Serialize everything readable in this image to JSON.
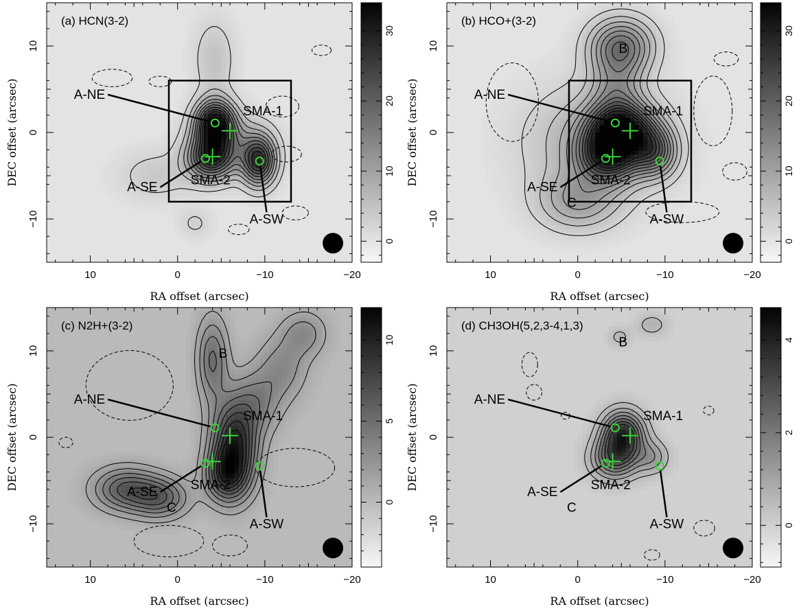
{
  "chart_data": [
    {
      "type": "heatmap",
      "title": "(a) HCN(3-2)",
      "xlabel": "RA offset (arcsec)",
      "ylabel": "DEC offset (arcsec)",
      "xlim": [
        15,
        -20
      ],
      "ylim": [
        -15,
        15
      ],
      "x_ticks": [
        10,
        0,
        -10,
        -20
      ],
      "y_ticks": [
        -10,
        0,
        10
      ],
      "x_tick_labels": [
        "10",
        "0",
        "−10",
        "−20"
      ],
      "y_tick_labels": [
        "−10",
        "0",
        "10"
      ],
      "colorbar": {
        "range": [
          -3,
          34
        ],
        "ticks": [
          0,
          10,
          20,
          30
        ],
        "tick_labels": [
          "0",
          "10",
          "20",
          "30"
        ]
      },
      "box": {
        "x": [
          1,
          -13
        ],
        "y": [
          -8,
          6
        ]
      },
      "beam": {
        "x": -17.8,
        "y": -12.8
      },
      "peaks": [
        {
          "x": -4.3,
          "y": 1.0,
          "amp": 32,
          "sx": 1.5,
          "sy": 1.8
        },
        {
          "x": -3.8,
          "y": -3.0,
          "amp": 24,
          "sx": 1.8,
          "sy": 1.7
        },
        {
          "x": -9.3,
          "y": -3.3,
          "amp": 26,
          "sx": 1.3,
          "sy": 1.9
        },
        {
          "x": -6.0,
          "y": -1.2,
          "amp": 9,
          "sx": 3.0,
          "sy": 2.2
        },
        {
          "x": -4.2,
          "y": 8.5,
          "amp": 5,
          "sx": 1.6,
          "sy": 3.2
        },
        {
          "x": 2.5,
          "y": -5.0,
          "amp": 4,
          "sx": 3.0,
          "sy": 2.0
        },
        {
          "x": -2.0,
          "y": -10.5,
          "amp": 3,
          "sx": 1.3,
          "sy": 1.2
        }
      ],
      "contour_levels": [
        2.5,
        5.5,
        8.5,
        11.5,
        14.5,
        17.5,
        20.5,
        23.5,
        26.5,
        29.5
      ],
      "neg_contours": [
        {
          "x": 7.5,
          "y": 6.3,
          "rx": 2.3,
          "ry": 1.0
        },
        {
          "x": 2.0,
          "y": 5.9,
          "rx": 1.3,
          "ry": 0.6
        },
        {
          "x": -12.0,
          "y": 3.0,
          "rx": 1.9,
          "ry": 1.2
        },
        {
          "x": -12.5,
          "y": -2.5,
          "rx": 1.7,
          "ry": 0.9
        },
        {
          "x": -13.5,
          "y": -9.3,
          "rx": 1.5,
          "ry": 0.8
        },
        {
          "x": -7.0,
          "y": -11.2,
          "rx": 1.2,
          "ry": 0.6
        },
        {
          "x": -16.5,
          "y": 9.5,
          "rx": 1.1,
          "ry": 0.6
        }
      ],
      "sources": [
        {
          "name": "A-NE",
          "lx": 8.3,
          "ly": 3.9,
          "tx": -4.3,
          "ty": 1.1,
          "anchor": "end",
          "marker": "circle"
        },
        {
          "name": "A-SE",
          "lx": 2.3,
          "ly": -6.8,
          "tx": -3.2,
          "ty": -3.0,
          "anchor": "end",
          "marker": "circle"
        },
        {
          "name": "A-SW",
          "lx": -10.2,
          "ly": -10.5,
          "tx": -9.4,
          "ty": -3.3,
          "anchor": "middle",
          "marker": "circle"
        },
        {
          "name": "SMA-1",
          "lx": -7.5,
          "ly": 2.0,
          "anchor": "start",
          "marker": "cross",
          "mx": -6.0,
          "my": 0.2
        },
        {
          "name": "SMA-2",
          "lx": -1.5,
          "ly": -6.0,
          "anchor": "start",
          "marker": "cross",
          "mx": -4.0,
          "my": -2.8
        }
      ],
      "extra_labels": []
    },
    {
      "type": "heatmap",
      "title": "(b) HCO+(3-2)",
      "xlabel": "RA offset (arcsec)",
      "ylabel": "DEC offset (arcsec)",
      "xlim": [
        15,
        -20
      ],
      "ylim": [
        -15,
        15
      ],
      "x_ticks": [
        10,
        0,
        -10,
        -20
      ],
      "y_ticks": [
        -10,
        0,
        10
      ],
      "x_tick_labels": [
        "10",
        "0",
        "−10",
        "−20"
      ],
      "y_tick_labels": [
        "−10",
        "0",
        "10"
      ],
      "colorbar": {
        "range": [
          -3,
          34
        ],
        "ticks": [
          0,
          10,
          20,
          30
        ],
        "tick_labels": [
          "0",
          "10",
          "20",
          "30"
        ]
      },
      "box": {
        "x": [
          1,
          -13
        ],
        "y": [
          -8,
          6
        ]
      },
      "beam": {
        "x": -17.8,
        "y": -12.8
      },
      "peaks": [
        {
          "x": -5.0,
          "y": 0.2,
          "amp": 30,
          "sx": 2.5,
          "sy": 2.0
        },
        {
          "x": -3.5,
          "y": -2.8,
          "amp": 22,
          "sx": 2.3,
          "sy": 2.0
        },
        {
          "x": -8.8,
          "y": -2.3,
          "amp": 16,
          "sx": 1.7,
          "sy": 1.9
        },
        {
          "x": -5.0,
          "y": 10.0,
          "amp": 16,
          "sx": 2.5,
          "sy": 2.2
        },
        {
          "x": -4.5,
          "y": 5.0,
          "amp": 9,
          "sx": 2.0,
          "sy": 3.0
        },
        {
          "x": 0.0,
          "y": -8.0,
          "amp": 9,
          "sx": 3.2,
          "sy": 2.3
        },
        {
          "x": -2.0,
          "y": -1.0,
          "amp": 8,
          "sx": 5.5,
          "sy": 4.5
        }
      ],
      "contour_levels": [
        2.5,
        5.0,
        7.5,
        10.0,
        12.5,
        15.0,
        17.5,
        20.0,
        22.5,
        25.0,
        27.5
      ],
      "neg_contours": [
        {
          "x": 7.5,
          "y": 3.5,
          "rx": 3.0,
          "ry": 4.5
        },
        {
          "x": -15.5,
          "y": 2.5,
          "rx": 2.2,
          "ry": 4.0
        },
        {
          "x": -12.0,
          "y": -9.2,
          "rx": 4.2,
          "ry": 1.2
        },
        {
          "x": -17.0,
          "y": 8.5,
          "rx": 1.4,
          "ry": 0.8
        },
        {
          "x": -18.0,
          "y": -4.5,
          "rx": 1.4,
          "ry": 1.0
        }
      ],
      "sources": [
        {
          "name": "A-NE",
          "lx": 8.3,
          "ly": 3.9,
          "tx": -4.3,
          "ty": 1.1,
          "anchor": "end",
          "marker": "circle"
        },
        {
          "name": "A-SE",
          "lx": 2.3,
          "ly": -6.8,
          "tx": -3.2,
          "ty": -3.0,
          "anchor": "end",
          "marker": "circle"
        },
        {
          "name": "A-SW",
          "lx": -10.2,
          "ly": -10.5,
          "tx": -9.4,
          "ty": -3.3,
          "anchor": "middle",
          "marker": "circle"
        },
        {
          "name": "SMA-1",
          "lx": -7.5,
          "ly": 2.0,
          "anchor": "start",
          "marker": "cross",
          "mx": -6.0,
          "my": 0.2
        },
        {
          "name": "SMA-2",
          "lx": -1.5,
          "ly": -6.0,
          "anchor": "start",
          "marker": "cross",
          "mx": -4.0,
          "my": -2.8
        }
      ],
      "extra_labels": [
        {
          "text": "B",
          "x": -5.2,
          "y": 9.2
        },
        {
          "text": "C",
          "x": 0.7,
          "y": -8.6
        }
      ]
    },
    {
      "type": "heatmap",
      "title": "(c) N2H+(3-2)",
      "xlabel": "RA offset (arcsec)",
      "ylabel": "DEC offset (arcsec)",
      "xlim": [
        15,
        -20
      ],
      "ylim": [
        -15,
        15
      ],
      "x_ticks": [
        10,
        0,
        -10,
        -20
      ],
      "y_ticks": [
        -10,
        0,
        10
      ],
      "x_tick_labels": [
        "10",
        "0",
        "−10",
        "−20"
      ],
      "y_tick_labels": [
        "−10",
        "0",
        "10"
      ],
      "colorbar": {
        "range": [
          -4,
          12
        ],
        "ticks": [
          0,
          5,
          10
        ],
        "tick_labels": [
          "0",
          "5",
          "10"
        ]
      },
      "box": null,
      "beam": {
        "x": -17.8,
        "y": -12.8
      },
      "peaks": [
        {
          "x": -6.5,
          "y": -1.0,
          "amp": 10,
          "sx": 1.8,
          "sy": 3.5
        },
        {
          "x": -5.5,
          "y": -4.5,
          "amp": 6,
          "sx": 1.6,
          "sy": 2.0
        },
        {
          "x": 6.0,
          "y": -6.0,
          "amp": 6,
          "sx": 2.5,
          "sy": 1.7
        },
        {
          "x": 2.0,
          "y": -7.0,
          "amp": 5.5,
          "sx": 2.2,
          "sy": 1.6
        },
        {
          "x": -4.0,
          "y": 9.0,
          "amp": 5,
          "sx": 1.2,
          "sy": 3.3
        },
        {
          "x": -9.0,
          "y": 4.0,
          "amp": 3.5,
          "sx": 2.0,
          "sy": 2.5
        },
        {
          "x": -12.0,
          "y": 8.0,
          "amp": 3,
          "sx": 2.0,
          "sy": 2.5
        },
        {
          "x": -14.5,
          "y": 12.0,
          "amp": 3,
          "sx": 1.8,
          "sy": 1.8
        }
      ],
      "contour_levels": [
        1.2,
        2.4,
        3.6,
        4.8,
        6.0,
        7.2,
        8.4,
        9.6
      ],
      "neg_contours": [
        {
          "x": 5.5,
          "y": 6.0,
          "rx": 5.0,
          "ry": 4.0
        },
        {
          "x": 12.8,
          "y": -0.6,
          "rx": 0.8,
          "ry": 0.6
        },
        {
          "x": -13.5,
          "y": -3.5,
          "rx": 4.5,
          "ry": 2.2
        },
        {
          "x": 1.0,
          "y": -12.0,
          "rx": 4.0,
          "ry": 1.8
        },
        {
          "x": -6.0,
          "y": -12.5,
          "rx": 2.0,
          "ry": 1.2
        }
      ],
      "sources": [
        {
          "name": "A-NE",
          "lx": 8.3,
          "ly": 3.9,
          "tx": -4.3,
          "ty": 1.1,
          "anchor": "end",
          "marker": "circle"
        },
        {
          "name": "A-SE",
          "lx": 2.3,
          "ly": -6.8,
          "tx": -3.2,
          "ty": -3.0,
          "anchor": "end",
          "marker": "circle"
        },
        {
          "name": "A-SW",
          "lx": -10.2,
          "ly": -10.5,
          "tx": -9.4,
          "ty": -3.3,
          "anchor": "middle",
          "marker": "circle"
        },
        {
          "name": "SMA-1",
          "lx": -7.5,
          "ly": 2.0,
          "anchor": "start",
          "marker": "cross",
          "mx": -6.0,
          "my": 0.2
        },
        {
          "name": "SMA-2",
          "lx": -1.5,
          "ly": -6.0,
          "anchor": "start",
          "marker": "cross",
          "mx": -4.0,
          "my": -2.8
        }
      ],
      "extra_labels": [
        {
          "text": "B",
          "x": -5.2,
          "y": 9.2
        },
        {
          "text": "C",
          "x": 0.7,
          "y": -8.6
        }
      ]
    },
    {
      "type": "heatmap",
      "title": "(d) CH3OH(5,2,3-4,1,3)",
      "xlabel": "RA offset (arcsec)",
      "ylabel": "DEC offset (arcsec)",
      "xlim": [
        15,
        -20
      ],
      "ylim": [
        -15,
        15
      ],
      "x_ticks": [
        10,
        0,
        -10,
        -20
      ],
      "y_ticks": [
        -10,
        0,
        10
      ],
      "x_tick_labels": [
        "10",
        "0",
        "−10",
        "−20"
      ],
      "y_tick_labels": [
        "−10",
        "0",
        "10"
      ],
      "colorbar": {
        "range": [
          -0.9,
          4.7
        ],
        "ticks": [
          0,
          2,
          4
        ],
        "tick_labels": [
          "0",
          "2",
          "4"
        ]
      },
      "box": null,
      "beam": {
        "x": -17.8,
        "y": -12.8
      },
      "peaks": [
        {
          "x": -5.2,
          "y": 0.3,
          "amp": 3.8,
          "sx": 1.6,
          "sy": 1.8
        },
        {
          "x": -4.2,
          "y": -2.5,
          "amp": 2.5,
          "sx": 1.8,
          "sy": 1.6
        },
        {
          "x": -8.5,
          "y": -2.3,
          "amp": 1.2,
          "sx": 1.3,
          "sy": 1.3
        },
        {
          "x": -8.5,
          "y": 13.0,
          "amp": 0.7,
          "sx": 1.2,
          "sy": 0.9
        },
        {
          "x": -4.8,
          "y": 11.6,
          "amp": 0.6,
          "sx": 0.9,
          "sy": 0.8
        }
      ],
      "contour_levels": [
        0.45,
        0.9,
        1.35,
        1.8,
        2.25,
        2.7,
        3.15
      ],
      "neg_contours": [
        {
          "x": 5.5,
          "y": 8.4,
          "rx": 0.9,
          "ry": 1.4
        },
        {
          "x": 5.0,
          "y": 5.2,
          "rx": 0.9,
          "ry": 0.9
        },
        {
          "x": 1.4,
          "y": 2.5,
          "rx": 0.5,
          "ry": 0.4
        },
        {
          "x": -15.0,
          "y": 3.1,
          "rx": 0.6,
          "ry": 0.5
        },
        {
          "x": -14.5,
          "y": -10.5,
          "rx": 1.2,
          "ry": 0.9
        },
        {
          "x": -8.5,
          "y": -13.6,
          "rx": 0.9,
          "ry": 0.6
        }
      ],
      "sources": [
        {
          "name": "A-NE",
          "lx": 8.3,
          "ly": 3.9,
          "tx": -4.3,
          "ty": 1.1,
          "anchor": "end",
          "marker": "circle"
        },
        {
          "name": "A-SE",
          "lx": 2.3,
          "ly": -6.8,
          "tx": -3.2,
          "ty": -3.0,
          "anchor": "end",
          "marker": "circle"
        },
        {
          "name": "A-SW",
          "lx": -10.2,
          "ly": -10.5,
          "tx": -9.4,
          "ty": -3.3,
          "anchor": "middle",
          "marker": "circle"
        },
        {
          "name": "SMA-1",
          "lx": -7.5,
          "ly": 2.0,
          "anchor": "start",
          "marker": "cross",
          "mx": -6.0,
          "my": 0.2
        },
        {
          "name": "SMA-2",
          "lx": -1.5,
          "ly": -6.0,
          "anchor": "start",
          "marker": "cross",
          "mx": -4.0,
          "my": -2.8
        }
      ],
      "extra_labels": [
        {
          "text": "B",
          "x": -5.2,
          "y": 10.5
        },
        {
          "text": "C",
          "x": 0.7,
          "y": -8.6
        }
      ]
    }
  ],
  "colors": {
    "marker": "#3bd33b",
    "contour": "#000000",
    "background": "#ffffff"
  }
}
